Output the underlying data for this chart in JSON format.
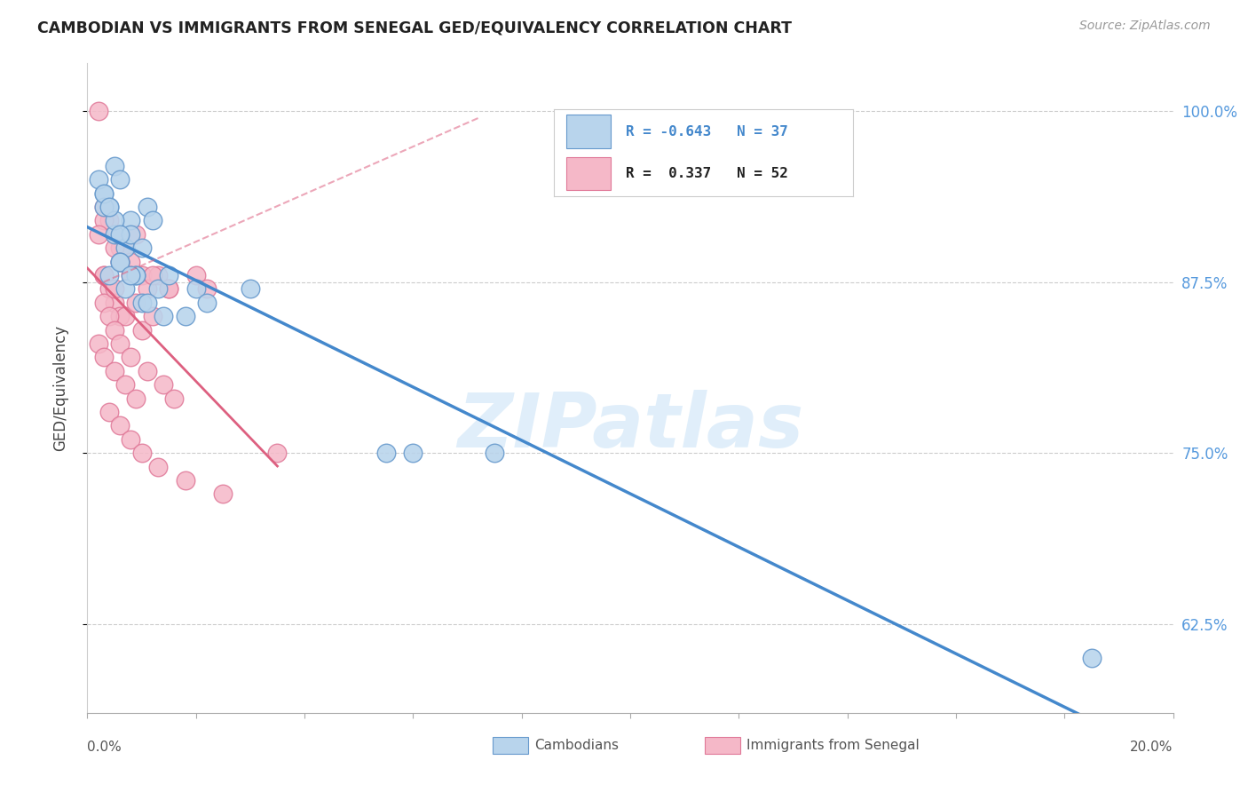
{
  "title": "CAMBODIAN VS IMMIGRANTS FROM SENEGAL GED/EQUIVALENCY CORRELATION CHART",
  "source": "Source: ZipAtlas.com",
  "ylabel": "GED/Equivalency",
  "xmin": 0.0,
  "xmax": 20.0,
  "ymin": 56.0,
  "ymax": 103.5,
  "y_ticks": [
    62.5,
    75.0,
    87.5,
    100.0
  ],
  "y_tick_labels": [
    "62.5%",
    "75.0%",
    "87.5%",
    "100.0%"
  ],
  "cambodian_R": -0.643,
  "cambodian_N": 37,
  "senegal_R": 0.337,
  "senegal_N": 52,
  "blue_fill": "#b8d4ec",
  "blue_edge": "#6699cc",
  "pink_fill": "#f5b8c8",
  "pink_edge": "#e07898",
  "trend_blue": "#4488cc",
  "trend_pink": "#dd6080",
  "right_tick_color": "#5599dd",
  "watermark_color": "#cce4f7",
  "cambodian_x": [
    0.3,
    0.5,
    0.4,
    0.6,
    0.8,
    0.5,
    0.7,
    0.9,
    1.1,
    0.6,
    0.8,
    1.0,
    1.2,
    0.4,
    0.6,
    0.9,
    1.3,
    1.5,
    0.3,
    0.5,
    0.7,
    1.0,
    2.0,
    2.2,
    1.8,
    3.0,
    5.5,
    7.5,
    0.2,
    0.3,
    0.4,
    0.6,
    0.8,
    1.1,
    1.4,
    18.5,
    6.0
  ],
  "cambodian_y": [
    94,
    96,
    93,
    95,
    92,
    91,
    90,
    88,
    93,
    89,
    91,
    90,
    92,
    88,
    89,
    88,
    87,
    88,
    93,
    92,
    87,
    86,
    87,
    86,
    85,
    87,
    75,
    75,
    95,
    94,
    93,
    91,
    88,
    86,
    85,
    60,
    75
  ],
  "senegal_x": [
    0.2,
    0.3,
    0.4,
    0.5,
    0.6,
    0.7,
    0.8,
    0.9,
    1.0,
    0.3,
    0.5,
    0.6,
    0.8,
    1.1,
    1.3,
    1.5,
    0.2,
    0.3,
    0.4,
    0.5,
    0.6,
    0.7,
    0.9,
    1.2,
    1.5,
    2.0,
    0.3,
    0.4,
    0.5,
    0.6,
    0.8,
    1.0,
    1.2,
    0.2,
    0.3,
    0.5,
    0.7,
    0.9,
    1.1,
    1.4,
    1.6,
    2.2,
    0.4,
    0.6,
    0.8,
    1.0,
    1.3,
    1.8,
    2.5,
    0.3,
    0.5,
    3.5
  ],
  "senegal_y": [
    100,
    93,
    92,
    91,
    90,
    90,
    89,
    91,
    88,
    92,
    90,
    89,
    88,
    87,
    88,
    87,
    91,
    88,
    87,
    86,
    85,
    85,
    86,
    88,
    87,
    88,
    86,
    85,
    84,
    83,
    82,
    84,
    85,
    83,
    82,
    81,
    80,
    79,
    81,
    80,
    79,
    87,
    78,
    77,
    76,
    75,
    74,
    73,
    72,
    88,
    87,
    75
  ]
}
